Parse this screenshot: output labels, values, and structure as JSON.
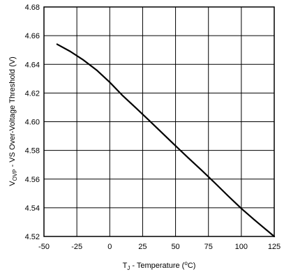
{
  "chart_data": {
    "type": "line",
    "title": "",
    "xlabel": {
      "main": "T",
      "sub": "J",
      "rest": " - Temperature (",
      "deg": "o",
      "unit": "C)"
    },
    "ylabel": {
      "main": "V",
      "sub": "OVP",
      "rest": " - VS Over-Voltage Threshold (V)"
    },
    "xlim": [
      -50,
      125
    ],
    "ylim": [
      4.52,
      4.68
    ],
    "x_ticks": [
      -50,
      -25,
      0,
      25,
      50,
      75,
      100,
      125
    ],
    "y_ticks": [
      4.52,
      4.54,
      4.56,
      4.58,
      4.6,
      4.62,
      4.64,
      4.66,
      4.68
    ],
    "x_tick_labels": [
      "-50",
      "-25",
      "0",
      "25",
      "50",
      "75",
      "100",
      "125"
    ],
    "y_tick_labels": [
      "4.52",
      "4.54",
      "4.56",
      "4.58",
      "4.60",
      "4.62",
      "4.64",
      "4.66",
      "4.68"
    ],
    "grid": true,
    "series": [
      {
        "x": [
          -40,
          -30,
          -20,
          -10,
          0,
          10,
          20,
          30,
          40,
          50,
          60,
          70,
          80,
          90,
          100,
          110,
          125
        ],
        "values": [
          4.654,
          4.649,
          4.643,
          4.636,
          4.6275,
          4.618,
          4.6095,
          4.6008,
          4.592,
          4.5832,
          4.5745,
          4.566,
          4.5572,
          4.5482,
          4.5395,
          4.5315,
          4.52
        ]
      }
    ]
  },
  "colors": {
    "line": "#000000",
    "grid": "#000000",
    "background": "#ffffff"
  }
}
